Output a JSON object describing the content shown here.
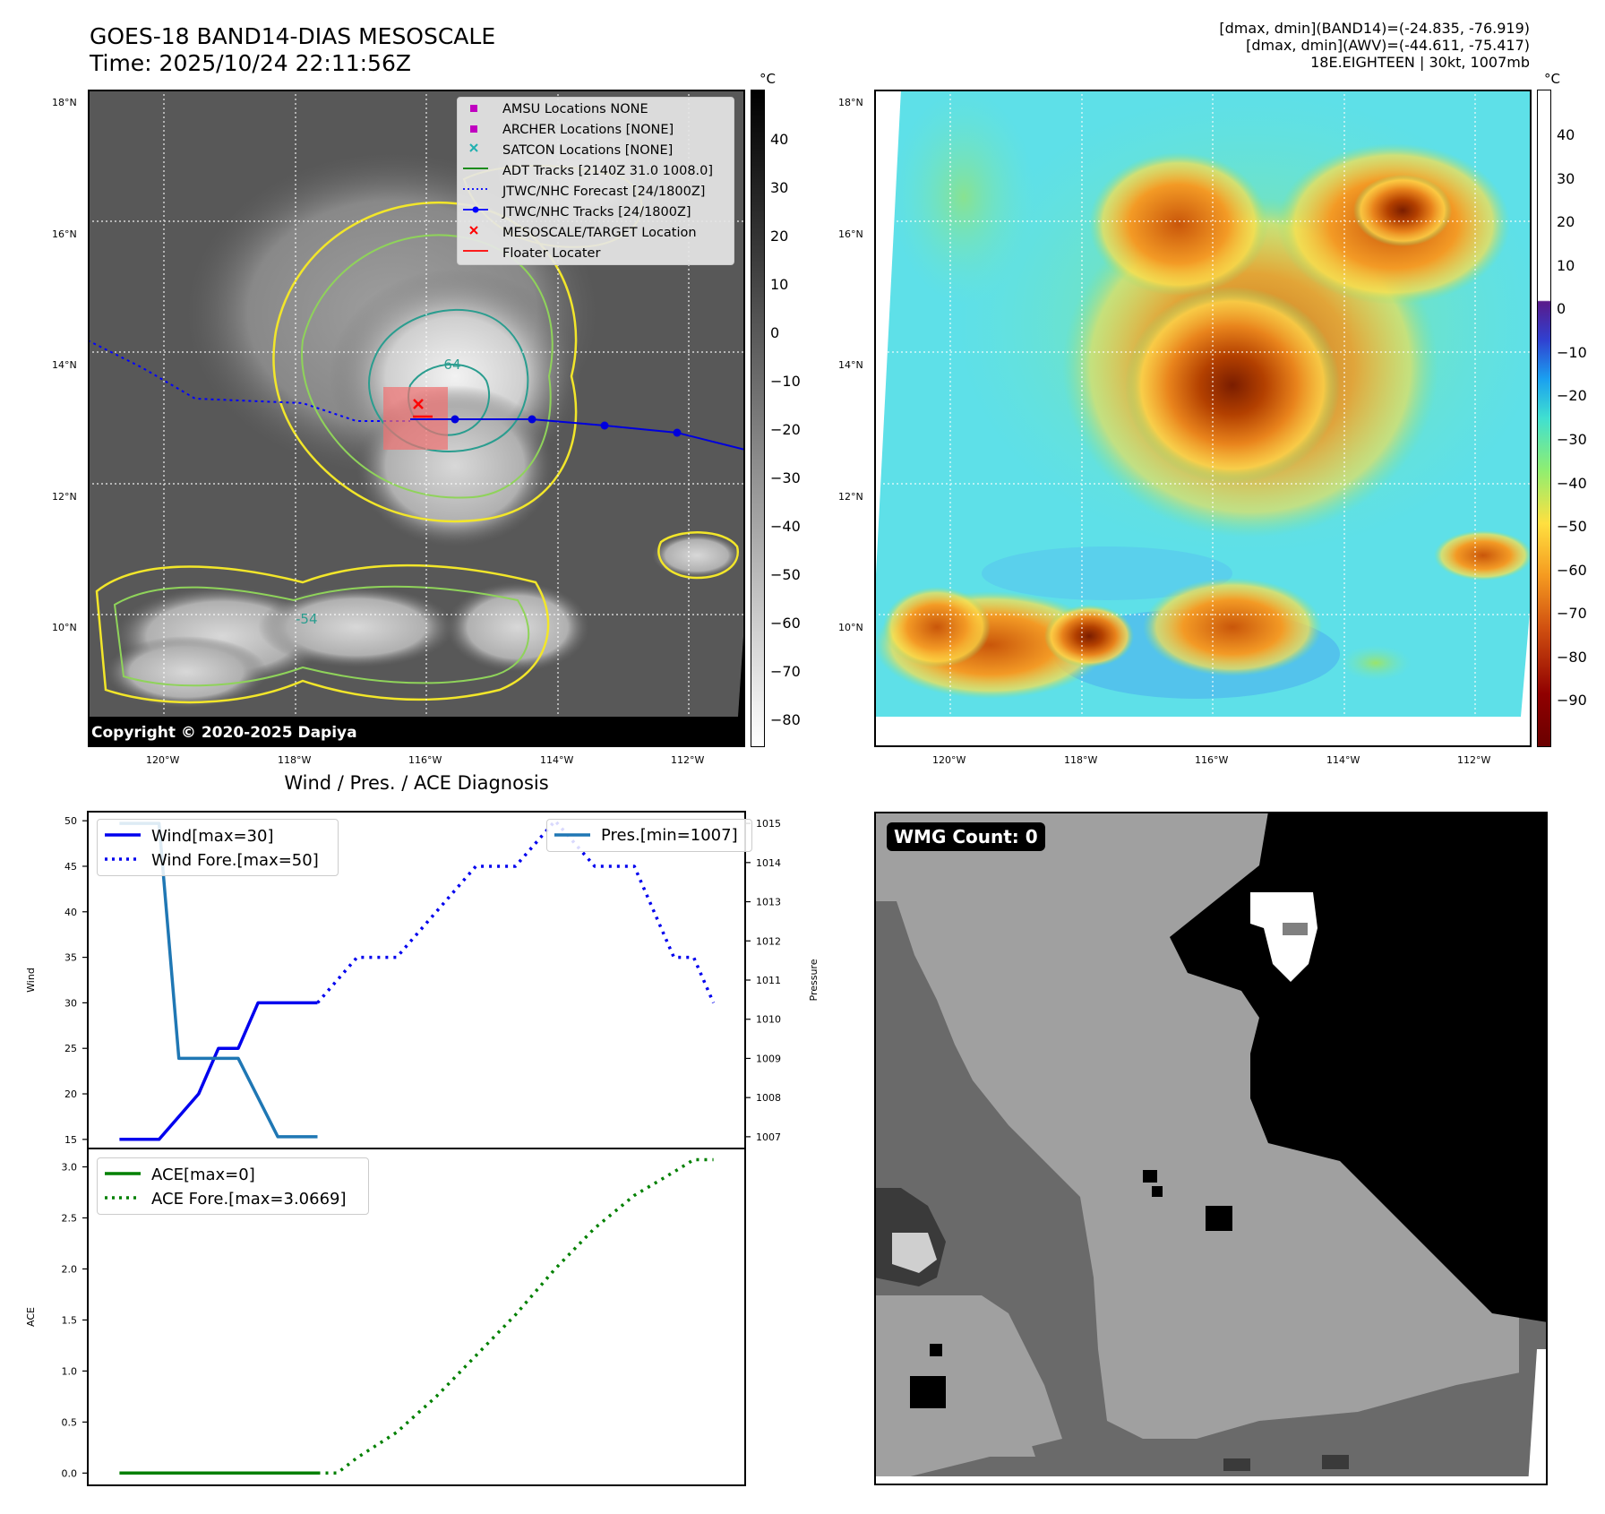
{
  "header": {
    "title": "GOES-18 BAND14-DIAS MESOSCALE",
    "time": "Time: 2025/10/24 22:11:56Z",
    "info_line1": "[dmax, dmin](BAND14)=(-24.835, -76.919)",
    "info_line2": "[dmax, dmin](AWV)=(-44.611, -75.417)",
    "info_line3": "18E.EIGHTEEN | 30kt, 1007mb"
  },
  "map": {
    "lat_labels": [
      "18°N",
      "16°N",
      "14°N",
      "12°N",
      "10°N"
    ],
    "lon_labels": [
      "120°W",
      "118°W",
      "116°W",
      "114°W",
      "112°W"
    ],
    "copyright": "Copyright © 2020-2025 Dapiya",
    "contour_labels": [
      "-64",
      "-54"
    ],
    "legend": [
      {
        "label": "AMSU Locations NONE",
        "color": "#c000c0"
      },
      {
        "label": "ARCHER Locations [NONE]",
        "color": "#c000c0"
      },
      {
        "label": "SATCON Locations [NONE]",
        "color": "#20b0b0"
      },
      {
        "label": "ADT Tracks [2140Z 31.0 1008.0]",
        "color": "#008000"
      },
      {
        "label": "JTWC/NHC Forecast [24/1800Z]",
        "color": "#0000ff"
      },
      {
        "label": "JTWC/NHC Tracks [24/1800Z]",
        "color": "#0000ff"
      },
      {
        "label": "MESOSCALE/TARGET Location",
        "color": "#ff0000"
      },
      {
        "label": "Floater Locater",
        "color": "#ff0000"
      }
    ],
    "colorbar_unit": "°C",
    "gray_ticks": [
      "40",
      "30",
      "20",
      "10",
      "0",
      "−10",
      "−20",
      "−30",
      "−40",
      "−50",
      "−60",
      "−70",
      "−80"
    ],
    "color_ticks": [
      "40",
      "30",
      "20",
      "10",
      "0",
      "−10",
      "−20",
      "−30",
      "−40",
      "−50",
      "−60",
      "−70",
      "−80",
      "−90"
    ]
  },
  "chart_data": [
    {
      "type": "line",
      "title": "Wind / Pres. / ACE Diagnosis",
      "ylabel": "Wind",
      "ylabel_right": "Pressure",
      "x": [
        0,
        1,
        2,
        3,
        4,
        5,
        6,
        7,
        8,
        9,
        10,
        11,
        12,
        13,
        14,
        15
      ],
      "ylim": [
        14,
        51
      ],
      "ylim_right": [
        1006.7,
        1015.3
      ],
      "yticks": [
        15,
        20,
        25,
        30,
        35,
        40,
        45,
        50
      ],
      "yticks_right": [
        1007,
        1008,
        1009,
        1010,
        1011,
        1012,
        1013,
        1014,
        1015
      ],
      "series": [
        {
          "name": "Wind[max=30]",
          "axis": "left",
          "color": "#0000ee",
          "style": "solid",
          "x": [
            0,
            1,
            2,
            2.5,
            3,
            3.5,
            4,
            5
          ],
          "values": [
            15,
            15,
            20,
            25,
            25,
            30,
            30,
            30
          ]
        },
        {
          "name": "Wind Fore.[max=50]",
          "axis": "left",
          "color": "#0000ee",
          "style": "dotted",
          "x": [
            5,
            6,
            7,
            8,
            9,
            10,
            11,
            12,
            13,
            14,
            14.5,
            15
          ],
          "values": [
            30,
            35,
            35,
            40,
            45,
            45,
            50,
            45,
            45,
            35,
            35,
            30
          ]
        },
        {
          "name": "Pres.[min=1007]",
          "axis": "right",
          "color": "#1f77b4",
          "style": "solid",
          "x": [
            0,
            1,
            1.5,
            3,
            4,
            5
          ],
          "values": [
            1015,
            1015,
            1009,
            1009,
            1007,
            1007
          ]
        }
      ]
    },
    {
      "type": "line",
      "ylabel": "ACE",
      "x": [
        0,
        1,
        2,
        3,
        4,
        5,
        6,
        7,
        8,
        9,
        10,
        11,
        12,
        13,
        14,
        15
      ],
      "ylim": [
        -0.12,
        3.18
      ],
      "yticks": [
        0.0,
        0.5,
        1.0,
        1.5,
        2.0,
        2.5,
        3.0
      ],
      "ytick_labels": [
        "0.0",
        "0.5",
        "1.0",
        "1.5",
        "2.0",
        "2.5",
        "3.0"
      ],
      "series": [
        {
          "name": "ACE[max=0]",
          "color": "#008000",
          "style": "solid",
          "x": [
            0,
            5
          ],
          "values": [
            0,
            0
          ]
        },
        {
          "name": "ACE Fore.[max=3.0669]",
          "color": "#008000",
          "style": "dotted",
          "x": [
            5,
            5.5,
            6,
            7,
            8,
            9,
            10,
            11,
            12,
            13,
            14,
            14.5,
            15
          ],
          "values": [
            0,
            0,
            0.15,
            0.4,
            0.75,
            1.15,
            1.55,
            2.0,
            2.4,
            2.72,
            2.95,
            3.07,
            3.07
          ]
        }
      ]
    }
  ],
  "wmg": {
    "count_label": "WMG Count: 0"
  }
}
